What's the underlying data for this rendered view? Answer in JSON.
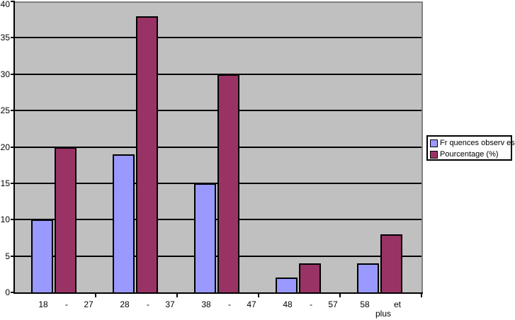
{
  "chart_data": {
    "type": "bar",
    "title": "",
    "xlabel": "",
    "ylabel": "",
    "categories": [
      "18 - 27",
      "28 - 37",
      "38 - 47",
      "48 - 57",
      "58 et plus"
    ],
    "category_label_parts": [
      [
        "18",
        "-",
        "27"
      ],
      [
        "28",
        "-",
        "37"
      ],
      [
        "38",
        "-",
        "47"
      ],
      [
        "48",
        "-",
        "57"
      ],
      [
        "58",
        "et"
      ]
    ],
    "category_label_line2": [
      "",
      "",
      "",
      "",
      "plus"
    ],
    "series": [
      {
        "name": "Fr quences observ es",
        "color": "#9999FF",
        "values": [
          10,
          19,
          15,
          2,
          4
        ]
      },
      {
        "name": "Pourcentage (%)",
        "color": "#993366",
        "values": [
          20,
          38,
          30,
          4,
          8
        ]
      }
    ],
    "ylim": [
      0,
      40
    ],
    "yticks": [
      0,
      5,
      10,
      15,
      20,
      25,
      30,
      35,
      40
    ],
    "grid": true,
    "legend_position": "right",
    "colors": {
      "plot_bg": "#C0C0C0",
      "plot_border": "#808080",
      "gridline": "#000000",
      "axis": "#000000",
      "bar_border": "#000000",
      "legend_bg": "#FFFFFF",
      "legend_border": "#000000",
      "text": "#000000",
      "page_bg": "#FFFFFF"
    }
  }
}
